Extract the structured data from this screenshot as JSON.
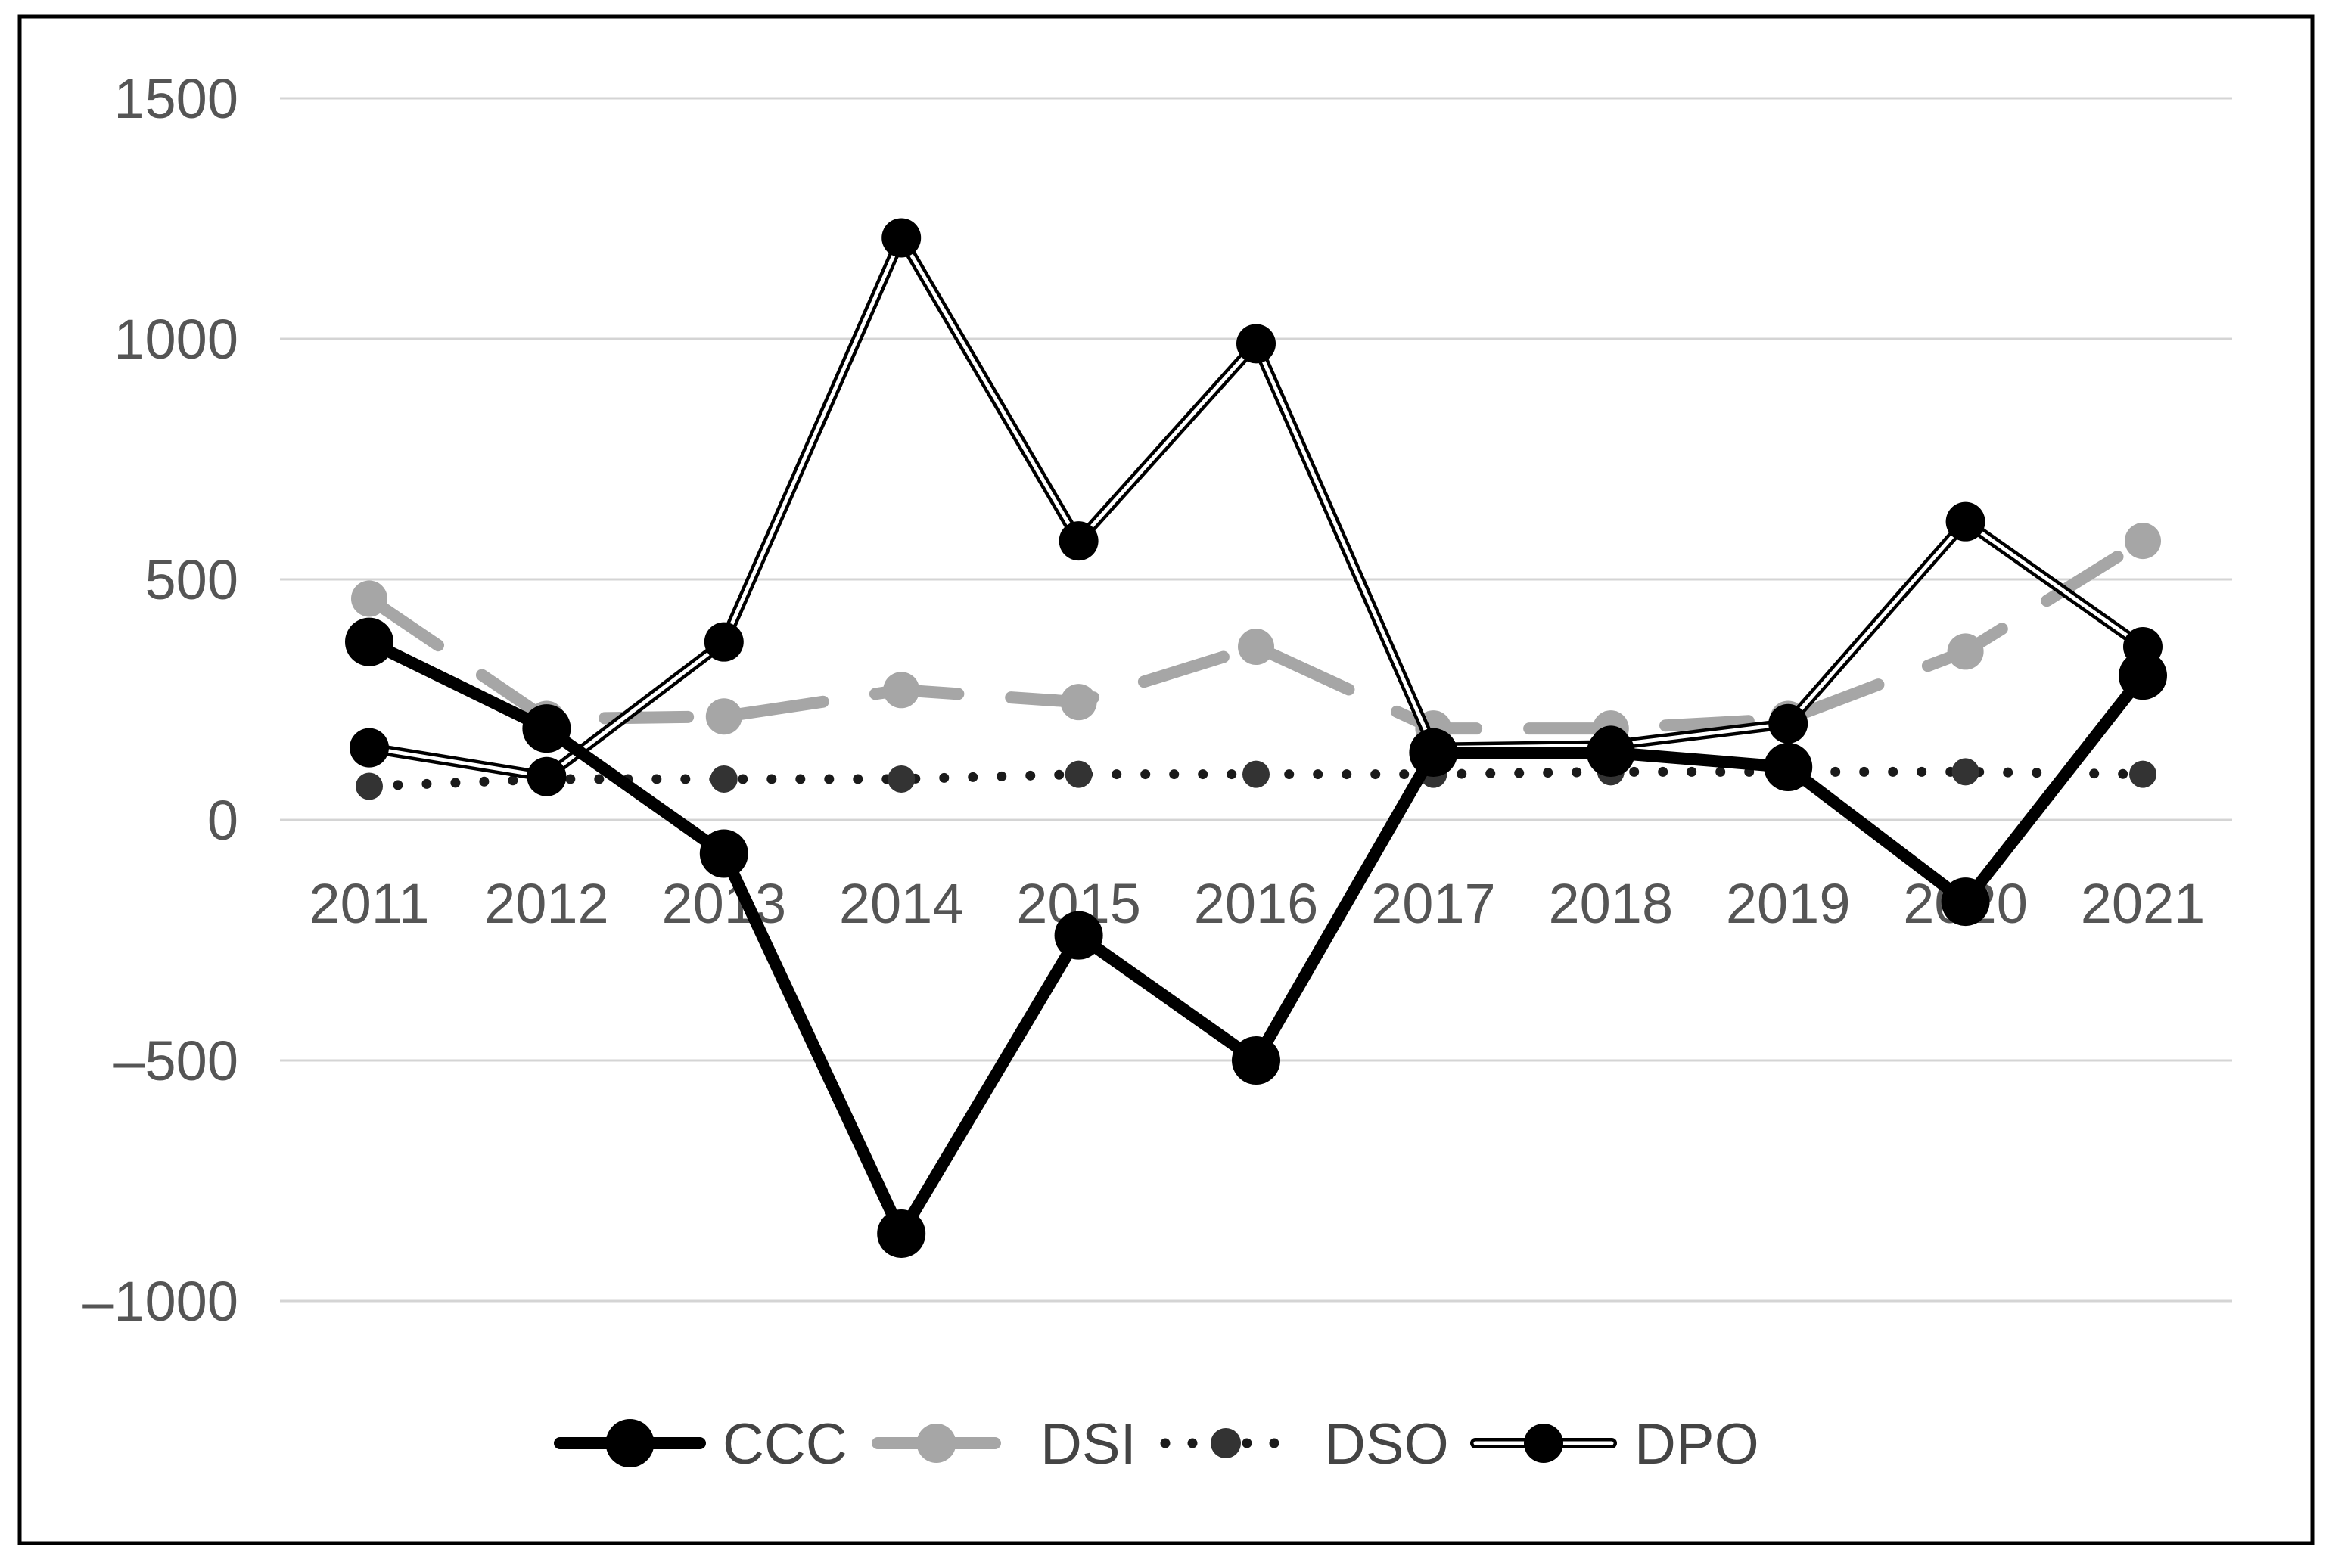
{
  "chart_data": {
    "type": "line",
    "title": "",
    "xlabel": "",
    "ylabel": "",
    "categories": [
      "2011",
      "2012",
      "2013",
      "2014",
      "2015",
      "2016",
      "2017",
      "2018",
      "2019",
      "2020",
      "2021"
    ],
    "y_ticks": [
      "1500",
      "1000",
      "500",
      "0",
      "–500",
      "–1000"
    ],
    "y_tick_values": [
      1500,
      1000,
      500,
      0,
      -500,
      -1000
    ],
    "ylim": [
      -1000,
      1500
    ],
    "grid": true,
    "legend_position": "bottom",
    "series": [
      {
        "name": "CCC",
        "values": [
          370,
          190,
          -70,
          -860,
          -240,
          -500,
          140,
          140,
          110,
          -170,
          300
        ],
        "color": "#000000",
        "style": "solid-thick"
      },
      {
        "name": "DSI",
        "values": [
          460,
          210,
          215,
          270,
          245,
          360,
          190,
          190,
          210,
          350,
          580
        ],
        "color": "#a6a6a6",
        "style": "dashed"
      },
      {
        "name": "DSO",
        "values": [
          70,
          85,
          85,
          85,
          95,
          95,
          95,
          100,
          100,
          100,
          95
        ],
        "color": "#1a1a1a",
        "style": "dotted"
      },
      {
        "name": "DPO",
        "values": [
          150,
          90,
          370,
          1210,
          580,
          990,
          150,
          155,
          200,
          620,
          360
        ],
        "color": "#000000",
        "style": "double"
      }
    ]
  }
}
